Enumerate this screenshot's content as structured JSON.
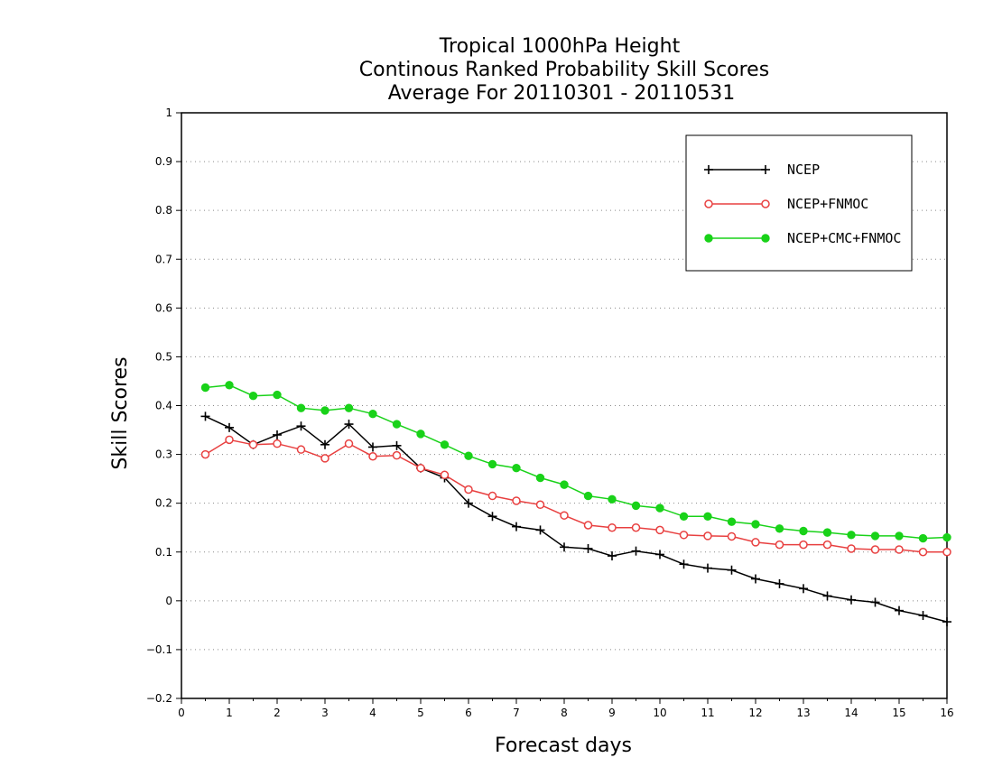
{
  "chart_data": {
    "type": "line",
    "title_lines": [
      "Tropical 1000hPa Height",
      "Continous Ranked Probability Skill Scores",
      "Average For 20110301 - 20110531"
    ],
    "xlabel": "Forecast days",
    "ylabel": "Skill Scores",
    "xlim": [
      0,
      16
    ],
    "ylim": [
      -0.2,
      1
    ],
    "xticks": [
      0,
      1,
      2,
      3,
      4,
      5,
      6,
      7,
      8,
      9,
      10,
      11,
      12,
      13,
      14,
      15,
      16
    ],
    "yticks": [
      -0.2,
      -0.1,
      0,
      0.1,
      0.2,
      0.3,
      0.4,
      0.5,
      0.6,
      0.7,
      0.8,
      0.9,
      1
    ],
    "ytick_labels": [
      "−0.2",
      "−0.1",
      "0",
      "0.1",
      "0.2",
      "0.3",
      "0.4",
      "0.5",
      "0.6",
      "0.7",
      "0.8",
      "0.9",
      "1"
    ],
    "grid": "horizontal-dotted",
    "legend_position": "top-right",
    "x": [
      0.5,
      1,
      1.5,
      2,
      2.5,
      3,
      3.5,
      4,
      4.5,
      5,
      5.5,
      6,
      6.5,
      7,
      7.5,
      8,
      8.5,
      9,
      9.5,
      10,
      10.5,
      11,
      11.5,
      12,
      12.5,
      13,
      13.5,
      14,
      14.5,
      15,
      15.5,
      16
    ],
    "series": [
      {
        "name": "NCEP",
        "color": "#000000",
        "marker": "plus",
        "values": [
          0.378,
          0.355,
          0.32,
          0.34,
          0.358,
          0.32,
          0.362,
          0.315,
          0.318,
          0.272,
          0.252,
          0.2,
          0.173,
          0.152,
          0.145,
          0.11,
          0.107,
          0.092,
          0.102,
          0.095,
          0.075,
          0.067,
          0.063,
          0.045,
          0.035,
          0.025,
          0.01,
          0.002,
          -0.003,
          -0.02,
          -0.03,
          -0.043
        ]
      },
      {
        "name": "NCEP+FNMOC",
        "color": "#e84040",
        "marker": "open-circle",
        "values": [
          0.3,
          0.33,
          0.32,
          0.322,
          0.31,
          0.292,
          0.322,
          0.296,
          0.298,
          0.272,
          0.258,
          0.228,
          0.215,
          0.205,
          0.197,
          0.175,
          0.155,
          0.15,
          0.15,
          0.145,
          0.135,
          0.133,
          0.132,
          0.12,
          0.115,
          0.115,
          0.115,
          0.107,
          0.105,
          0.105,
          0.1,
          0.1
        ]
      },
      {
        "name": "NCEP+CMC+FNMOC",
        "color": "#19d219",
        "marker": "filled-circle",
        "values": [
          0.437,
          0.442,
          0.42,
          0.422,
          0.395,
          0.39,
          0.395,
          0.383,
          0.362,
          0.342,
          0.32,
          0.297,
          0.28,
          0.272,
          0.252,
          0.238,
          0.215,
          0.208,
          0.195,
          0.19,
          0.173,
          0.173,
          0.162,
          0.157,
          0.148,
          0.143,
          0.14,
          0.135,
          0.133,
          0.133,
          0.128,
          0.13
        ]
      }
    ]
  }
}
